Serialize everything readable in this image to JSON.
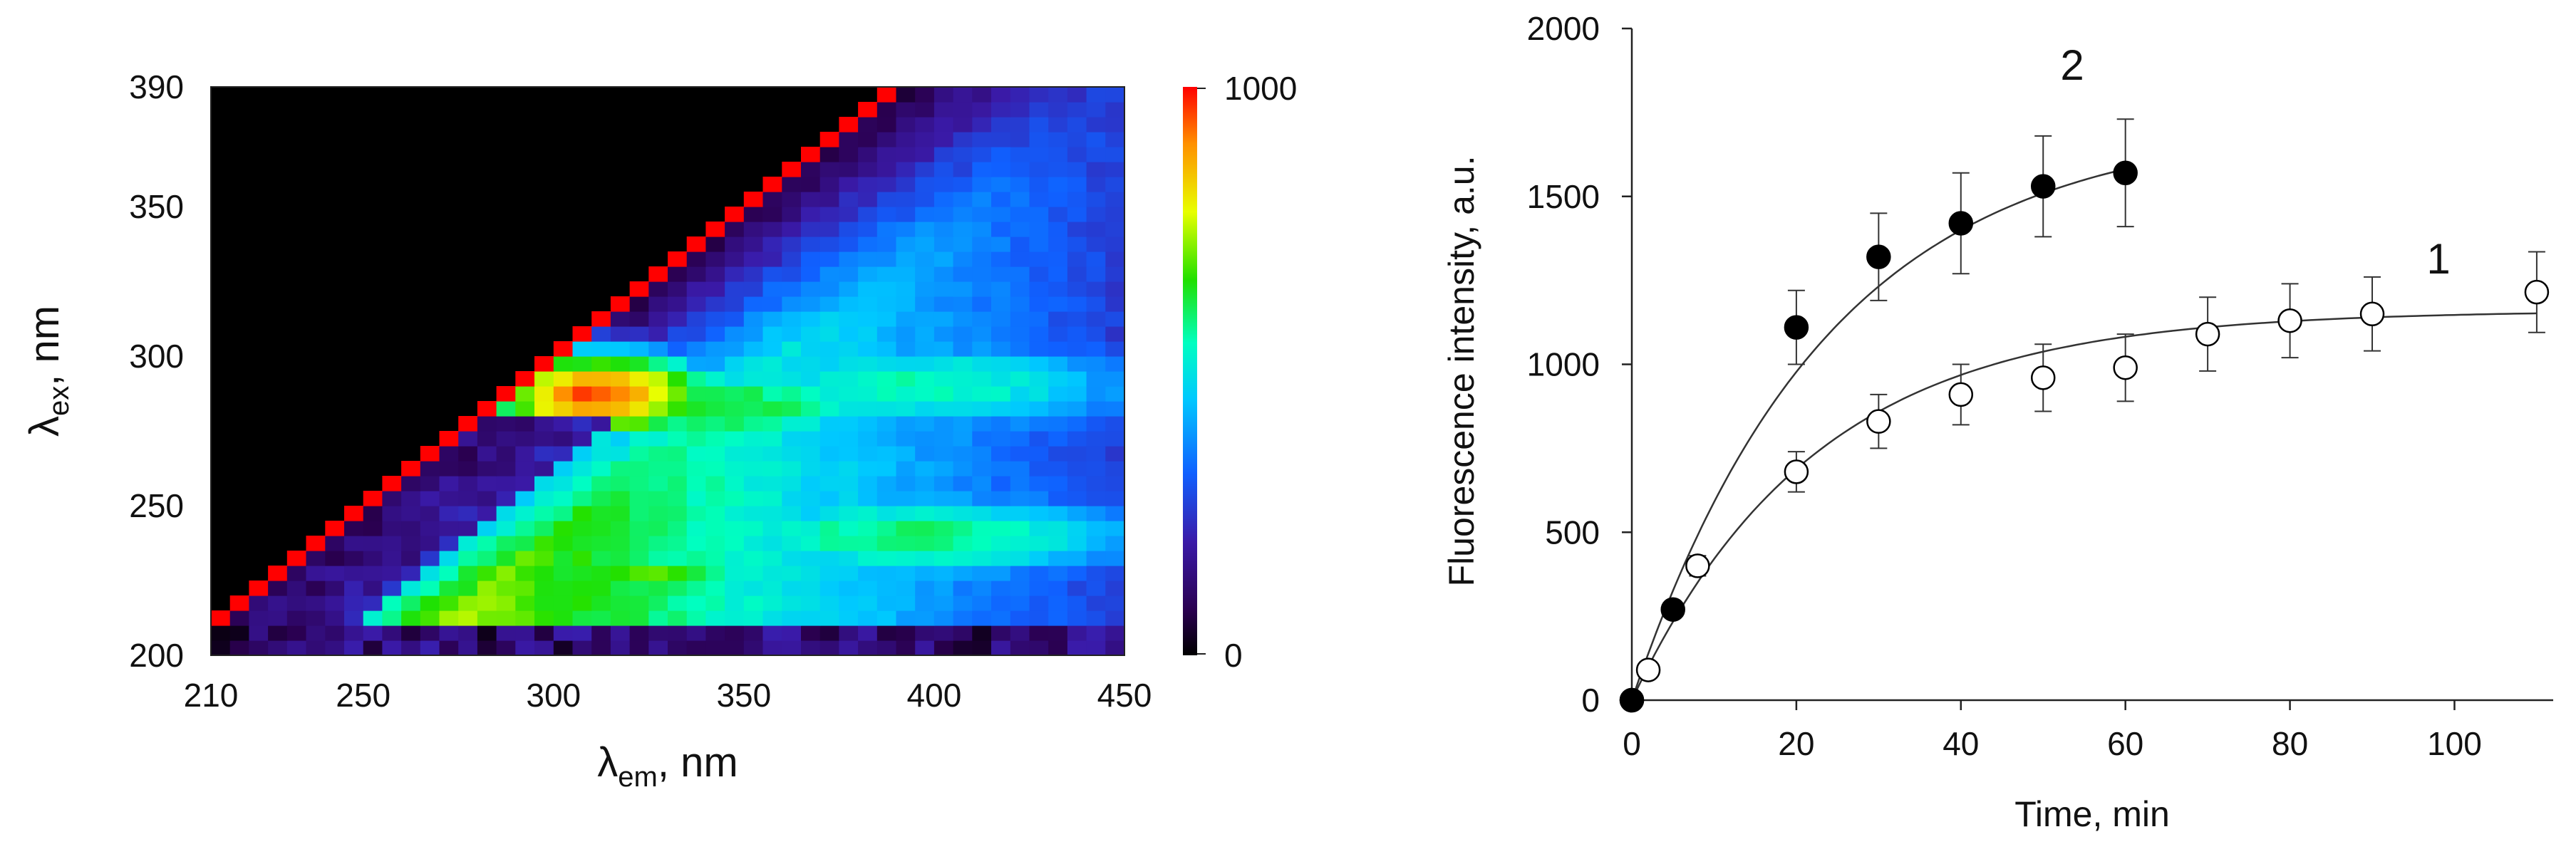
{
  "chart_data": [
    {
      "type": "heatmap",
      "xlabel": {
        "sym": "λ",
        "sub": "em",
        "rest": ", nm"
      },
      "ylabel": {
        "sym": "λ",
        "sub": "ex",
        "rest": ", nm"
      },
      "x_ticks": [
        "210",
        "250",
        "300",
        "350",
        "400",
        "450"
      ],
      "x_tick_values": [
        210,
        250,
        300,
        350,
        400,
        450
      ],
      "y_ticks": [
        "200",
        "250",
        "300",
        "350",
        "390"
      ],
      "y_tick_values": [
        200,
        250,
        300,
        350,
        390
      ],
      "xlim": [
        210,
        450
      ],
      "ylim": [
        200,
        390
      ],
      "colorbar": {
        "min_label": "0",
        "max_label": "1000",
        "range": [
          0,
          1000
        ]
      },
      "colors": {
        "background": "#000000"
      },
      "scatter_line": {
        "description": "Rayleigh line λem = λex",
        "value": 1000
      },
      "peaks": [
        {
          "em": 312,
          "ex": 287,
          "value": 950,
          "w_em": 38,
          "w_ex": 18
        },
        {
          "em": 345,
          "ex": 283,
          "value": 640,
          "w_em": 60,
          "w_ex": 20
        },
        {
          "em": 395,
          "ex": 290,
          "value": 560,
          "w_em": 85,
          "w_ex": 22
        },
        {
          "em": 325,
          "ex": 227,
          "value": 700,
          "w_em": 45,
          "w_ex": 12
        },
        {
          "em": 395,
          "ex": 240,
          "value": 600,
          "w_em": 85,
          "w_ex": 20
        }
      ]
    },
    {
      "type": "scatter",
      "xlabel": "Time, min",
      "ylabel": "Fluorescence intensity, a.u.",
      "x_ticks": [
        "0",
        "20",
        "40",
        "60",
        "80",
        "100"
      ],
      "x_tick_values": [
        0,
        20,
        40,
        60,
        80,
        100
      ],
      "y_ticks": [
        "0",
        "500",
        "1000",
        "1500",
        "2000"
      ],
      "y_tick_values": [
        0,
        500,
        1000,
        1500,
        2000
      ],
      "xlim": [
        0,
        112
      ],
      "ylim": [
        0,
        2000
      ],
      "series": [
        {
          "name": "1",
          "marker": "open-circle",
          "x": [
            0,
            2,
            8,
            20,
            30,
            40,
            50,
            60,
            70,
            80,
            90,
            110
          ],
          "y": [
            0,
            90,
            400,
            680,
            830,
            910,
            960,
            990,
            1090,
            1130,
            1150,
            1215
          ],
          "err": [
            0,
            0,
            30,
            60,
            80,
            90,
            100,
            100,
            110,
            110,
            110,
            120
          ],
          "fit": {
            "amplitude": 1160,
            "rate": 0.045,
            "x_end": 110
          }
        },
        {
          "name": "2",
          "marker": "filled-circle",
          "x": [
            0,
            5,
            20,
            30,
            40,
            50,
            60
          ],
          "y": [
            0,
            270,
            1110,
            1320,
            1420,
            1530,
            1570
          ],
          "err": [
            0,
            0,
            110,
            130,
            150,
            150,
            160
          ],
          "fit": {
            "amplitude": 1720,
            "rate": 0.042,
            "x_end": 60
          }
        }
      ]
    }
  ]
}
